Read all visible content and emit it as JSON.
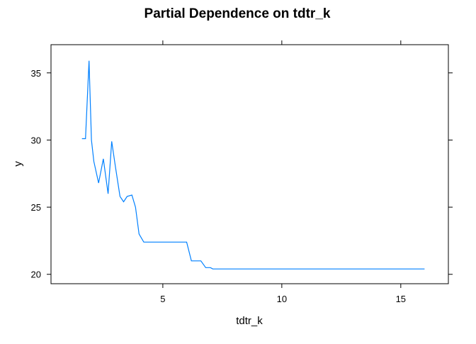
{
  "chart_data": {
    "type": "line",
    "title": "Partial Dependence on tdtr_k",
    "xlabel": "tdtr_k",
    "ylabel": "y",
    "xlim": [
      0.3,
      17.0
    ],
    "ylim": [
      19.3,
      37.1
    ],
    "xticks": [
      5,
      10,
      15
    ],
    "xtick_labels": [
      "5",
      "10",
      "15"
    ],
    "yticks": [
      20,
      25,
      30,
      35
    ],
    "ytick_labels": [
      "20",
      "25",
      "30",
      "35"
    ],
    "grid": false,
    "legend": "none",
    "line_color": "#0080ff",
    "series": [
      {
        "x": [
          1.6,
          1.75,
          1.9,
          2.0,
          2.1,
          2.3,
          2.5,
          2.7,
          2.85,
          3.0,
          3.2,
          3.35,
          3.5,
          3.7,
          3.85,
          4.0,
          4.2,
          5.0,
          6.0,
          6.2,
          6.4,
          6.6,
          6.8,
          7.0,
          7.1,
          8.0,
          16.0
        ],
        "y": [
          30.1,
          30.1,
          35.9,
          30.0,
          28.4,
          26.8,
          28.6,
          26.0,
          29.9,
          28.1,
          25.8,
          25.4,
          25.8,
          25.9,
          25.0,
          23.0,
          22.4,
          22.4,
          22.4,
          21.0,
          21.0,
          21.0,
          20.5,
          20.5,
          20.4,
          20.4,
          20.4
        ]
      }
    ]
  }
}
